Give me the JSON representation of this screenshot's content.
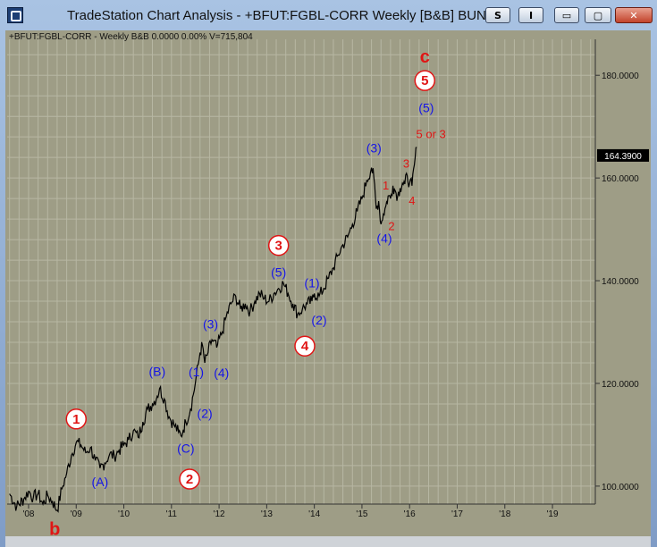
{
  "window": {
    "title": "TradeStation Chart Analysis - +BFUT:FGBL-CORR Weekly [B&B] BUND Future",
    "menu_s_label": "S",
    "menu_i_label": "I",
    "minimize_label": "▭",
    "maximize_label": "▢",
    "close_label": "✕"
  },
  "colors": {
    "plot_background": "#9e9d86",
    "price_line": "#000000",
    "wave_blue": "#1515e8",
    "wave_red": "#e01515"
  },
  "chart_data": {
    "type": "line",
    "header": "+BFUT:FGBL-CORR - Weekly  B&B  0.0000  0.00%  V=715,804",
    "x": [
      2007.6,
      2007.75,
      2007.9,
      2008.0,
      2008.1,
      2008.2,
      2008.3,
      2008.4,
      2008.5,
      2008.6,
      2008.7,
      2008.8,
      2008.9,
      2009.0,
      2009.1,
      2009.2,
      2009.3,
      2009.4,
      2009.5,
      2009.6,
      2009.7,
      2009.8,
      2009.9,
      2010.0,
      2010.1,
      2010.2,
      2010.3,
      2010.4,
      2010.5,
      2010.6,
      2010.7,
      2010.75,
      2010.85,
      2010.95,
      2011.05,
      2011.15,
      2011.2,
      2011.25,
      2011.3,
      2011.4,
      2011.5,
      2011.6,
      2011.65,
      2011.7,
      2011.75,
      2011.85,
      2011.95,
      2012.05,
      2012.15,
      2012.25,
      2012.35,
      2012.45,
      2012.55,
      2012.65,
      2012.75,
      2012.85,
      2012.95,
      2013.05,
      2013.15,
      2013.25,
      2013.35,
      2013.45,
      2013.55,
      2013.65,
      2013.75,
      2013.85,
      2013.95,
      2014.0,
      2014.1,
      2014.2,
      2014.3,
      2014.4,
      2014.5,
      2014.6,
      2014.7,
      2014.8,
      2014.9,
      2015.0,
      2015.1,
      2015.2,
      2015.25,
      2015.3,
      2015.35,
      2015.4,
      2015.45,
      2015.5,
      2015.55,
      2015.6,
      2015.65,
      2015.7,
      2015.75,
      2015.8,
      2015.85,
      2015.9,
      2015.95,
      2016.0,
      2016.05,
      2016.1,
      2016.15
    ],
    "y": [
      98.5,
      96.0,
      97.5,
      99.0,
      97.8,
      98.5,
      96.5,
      98.2,
      97.0,
      95.3,
      99.5,
      102.5,
      106.0,
      108.5,
      108.0,
      106.5,
      107.5,
      105.0,
      103.5,
      104.5,
      106.2,
      105.8,
      107.0,
      108.0,
      109.0,
      110.8,
      109.5,
      112.5,
      115.0,
      116.0,
      117.5,
      119.0,
      117.0,
      113.5,
      112.0,
      110.5,
      109.8,
      111.0,
      112.5,
      115.0,
      120.0,
      126.0,
      127.5,
      124.0,
      125.5,
      128.5,
      127.0,
      129.5,
      133.0,
      135.5,
      137.0,
      134.5,
      135.5,
      134.0,
      136.0,
      137.5,
      136.5,
      136.0,
      137.5,
      138.5,
      139.5,
      137.5,
      135.5,
      133.5,
      134.5,
      135.5,
      136.0,
      137.5,
      137.0,
      138.5,
      140.5,
      142.5,
      145.0,
      147.0,
      148.5,
      151.0,
      153.5,
      156.0,
      159.5,
      162.0,
      160.0,
      154.0,
      155.5,
      151.0,
      153.0,
      154.5,
      156.5,
      156.0,
      158.5,
      157.5,
      156.5,
      158.0,
      159.0,
      158.8,
      160.5,
      159.0,
      158.5,
      162.5,
      166.0
    ],
    "xlim": [
      2007.55,
      2019.9
    ],
    "ylim": [
      96.5,
      187.0
    ],
    "y_ticks": [
      100,
      120,
      140,
      160,
      180
    ],
    "y_tick_labels": [
      "100.0000",
      "120.0000",
      "140.0000",
      "160.0000",
      "180.0000"
    ],
    "x_ticks": [
      2008,
      2009,
      2010,
      2011,
      2012,
      2013,
      2014,
      2015,
      2016,
      2017,
      2018,
      2019
    ],
    "x_tick_labels": [
      "'08",
      "'09",
      "'10",
      "'11",
      "'12",
      "'13",
      "'14",
      "'15",
      "'16",
      "'17",
      "'18",
      "'19"
    ],
    "last_price": 164.39,
    "last_price_label": "164.3900",
    "grid": true,
    "annotations": [
      {
        "text": "1",
        "style": "circle",
        "x": 2009.0,
        "y": 112.2
      },
      {
        "text": "(A)",
        "style": "blue",
        "x": 2009.5,
        "y": 100.0
      },
      {
        "text": "b",
        "style": "red-big",
        "x": 2008.55,
        "y": 90.5
      },
      {
        "text": "(B)",
        "style": "blue",
        "x": 2010.7,
        "y": 121.5
      },
      {
        "text": "(C)",
        "style": "blue",
        "x": 2011.3,
        "y": 106.5
      },
      {
        "text": "2",
        "style": "circle",
        "x": 2011.38,
        "y": 100.5
      },
      {
        "text": "(2)",
        "style": "blue",
        "x": 2011.7,
        "y": 113.3
      },
      {
        "text": "(1)",
        "style": "blue",
        "x": 2011.52,
        "y": 121.4
      },
      {
        "text": "(4)",
        "style": "blue",
        "x": 2012.05,
        "y": 121.2
      },
      {
        "text": "(3)",
        "style": "blue",
        "x": 2011.82,
        "y": 130.7
      },
      {
        "text": "3",
        "style": "circle",
        "x": 2013.25,
        "y": 146.0
      },
      {
        "text": "(5)",
        "style": "blue",
        "x": 2013.25,
        "y": 140.8
      },
      {
        "text": "(1)",
        "style": "blue",
        "x": 2013.95,
        "y": 138.7
      },
      {
        "text": "(2)",
        "style": "blue",
        "x": 2014.1,
        "y": 131.5
      },
      {
        "text": "4",
        "style": "circle",
        "x": 2013.8,
        "y": 126.4
      },
      {
        "text": "(3)",
        "style": "blue",
        "x": 2015.25,
        "y": 165.0
      },
      {
        "text": "1",
        "style": "red",
        "x": 2015.5,
        "y": 157.8
      },
      {
        "text": "2",
        "style": "red",
        "x": 2015.62,
        "y": 149.8
      },
      {
        "text": "(4)",
        "style": "blue",
        "x": 2015.47,
        "y": 147.4
      },
      {
        "text": "3",
        "style": "red",
        "x": 2015.93,
        "y": 162.0
      },
      {
        "text": "4",
        "style": "red",
        "x": 2016.05,
        "y": 154.8
      },
      {
        "text": "5 or 3",
        "style": "red",
        "x": 2016.45,
        "y": 167.8
      },
      {
        "text": "(5)",
        "style": "blue",
        "x": 2016.35,
        "y": 172.8
      },
      {
        "text": "5",
        "style": "circle",
        "x": 2016.32,
        "y": 178.1
      },
      {
        "text": "c",
        "style": "red-big",
        "x": 2016.32,
        "y": 182.5
      }
    ]
  }
}
